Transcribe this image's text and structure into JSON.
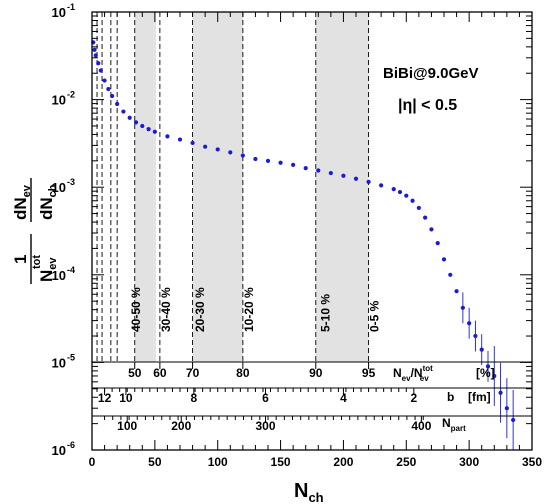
{
  "chart_data": {
    "type": "scatter",
    "title": "",
    "xlabel": "N",
    "xlabel_sub": "ch",
    "ylabel": {
      "num": "1",
      "den_main": "N",
      "den_sup": "tot",
      "den_sub": "ev",
      "num2_main": "dN",
      "num2_sub": "ev",
      "den2_main": "dN",
      "den2_sub": "ch"
    },
    "xlim": [
      0,
      350
    ],
    "ylim": [
      1e-06,
      0.1
    ],
    "yscale": "log",
    "x_ticks": [
      0,
      50,
      100,
      150,
      200,
      250,
      300,
      350
    ],
    "y_ticks": [
      {
        "m": "10",
        "e": "-6",
        "v": 1e-06
      },
      {
        "m": "10",
        "e": "-5",
        "v": 1e-05
      },
      {
        "m": "10",
        "e": "-4",
        "v": 0.0001
      },
      {
        "m": "10",
        "e": "-3",
        "v": 0.001
      },
      {
        "m": "10",
        "e": "-2",
        "v": 0.01
      },
      {
        "m": "10",
        "e": "-1",
        "v": 0.1
      }
    ],
    "annotations": [
      "BiBi@9.0GeV",
      "|η| < 0.5"
    ],
    "color": "#1a1adb",
    "series": [
      {
        "points": [
          [
            1,
            0.045
          ],
          [
            2,
            0.037
          ],
          [
            3,
            0.032
          ],
          [
            5,
            0.026
          ],
          [
            7,
            0.0215
          ],
          [
            10,
            0.0165
          ],
          [
            13,
            0.0132
          ],
          [
            16,
            0.011
          ],
          [
            20,
            0.0089
          ],
          [
            25,
            0.0073
          ],
          [
            30,
            0.0062
          ],
          [
            35,
            0.0055
          ],
          [
            40,
            0.005
          ],
          [
            45,
            0.0046
          ],
          [
            50,
            0.0043
          ],
          [
            60,
            0.0038
          ],
          [
            70,
            0.0035
          ],
          [
            80,
            0.0032
          ],
          [
            90,
            0.0029
          ],
          [
            100,
            0.0027
          ],
          [
            110,
            0.0025
          ],
          [
            120,
            0.0023
          ],
          [
            130,
            0.0021
          ],
          [
            140,
            0.002
          ],
          [
            150,
            0.0019
          ],
          [
            160,
            0.0018
          ],
          [
            170,
            0.00165
          ],
          [
            180,
            0.00155
          ],
          [
            190,
            0.00145
          ],
          [
            200,
            0.00135
          ],
          [
            210,
            0.00125
          ],
          [
            220,
            0.00115
          ],
          [
            230,
            0.00105
          ],
          [
            240,
            0.00095
          ],
          [
            245,
            0.00088
          ],
          [
            250,
            0.0008
          ],
          [
            255,
            0.0007
          ],
          [
            260,
            0.00058
          ],
          [
            265,
            0.00045
          ],
          [
            270,
            0.00033
          ],
          [
            275,
            0.00023
          ],
          [
            280,
            0.00015
          ],
          [
            285,
            0.0001
          ],
          [
            290,
            6.5e-05
          ],
          [
            295,
            4.2e-05
          ],
          [
            300,
            2.8e-05
          ],
          [
            305,
            2e-05
          ],
          [
            310,
            1.4e-05
          ],
          [
            315,
            9e-06
          ],
          [
            320,
            7e-06
          ],
          [
            325,
            4.5e-06
          ],
          [
            330,
            3e-06
          ],
          [
            335,
            2.2e-06
          ]
        ]
      }
    ],
    "centrality_bands": [
      {
        "label": "40-50 %",
        "x": [
          34,
          51
        ]
      },
      {
        "label": "30-40 %",
        "x": [
          51,
          54
        ]
      },
      {
        "label": "20-30 %",
        "x": [
          80,
          120
        ]
      },
      {
        "label": "10-20 %",
        "x": [
          120,
          122
        ]
      },
      {
        "label": "5-10 %",
        "x": [
          178,
          220
        ]
      },
      {
        "label": "0-5 %",
        "x": [
          220,
          222
        ]
      }
    ],
    "dashed_lines_x": [
      4,
      8,
      15,
      20,
      34,
      54,
      80,
      120,
      178,
      220
    ],
    "shaded_bands_x": [
      [
        34,
        51
      ],
      [
        80,
        120
      ],
      [
        178,
        220
      ]
    ],
    "band_labels": [
      {
        "text": "40-50 %",
        "x": 38
      },
      {
        "text": "30-40 %",
        "x": 62
      },
      {
        "text": "20-30 %",
        "x": 89
      },
      {
        "text": "10-20 %",
        "x": 128
      },
      {
        "text": "5-10 %",
        "x": 189
      },
      {
        "text": "0-5 %",
        "x": 228
      }
    ],
    "axis_nev": {
      "label": "N",
      "label_sub": "ev",
      "label_div": "/N",
      "label_sup2": "tot",
      "label_sub2": "ev",
      "unit": "[%]",
      "ticks": [
        {
          "v": "50",
          "x": 34
        },
        {
          "v": "60",
          "x": 54
        },
        {
          "v": "70",
          "x": 80
        },
        {
          "v": "80",
          "x": 120
        },
        {
          "v": "90",
          "x": 178
        },
        {
          "v": "95",
          "x": 220
        }
      ]
    },
    "axis_b": {
      "label": "b",
      "unit": "[fm]",
      "ticks": [
        {
          "v": "12",
          "x": 10
        },
        {
          "v": "10",
          "x": 27
        },
        {
          "v": "8",
          "x": 81
        },
        {
          "v": "6",
          "x": 138
        },
        {
          "v": "4",
          "x": 200
        },
        {
          "v": "2",
          "x": 256
        }
      ]
    },
    "axis_npart": {
      "label": "N",
      "label_sub": "part",
      "ticks": [
        {
          "v": "100",
          "x": 28
        },
        {
          "v": "200",
          "x": 71
        },
        {
          "v": "300",
          "x": 138
        },
        {
          "v": "400",
          "x": 262
        }
      ]
    }
  }
}
